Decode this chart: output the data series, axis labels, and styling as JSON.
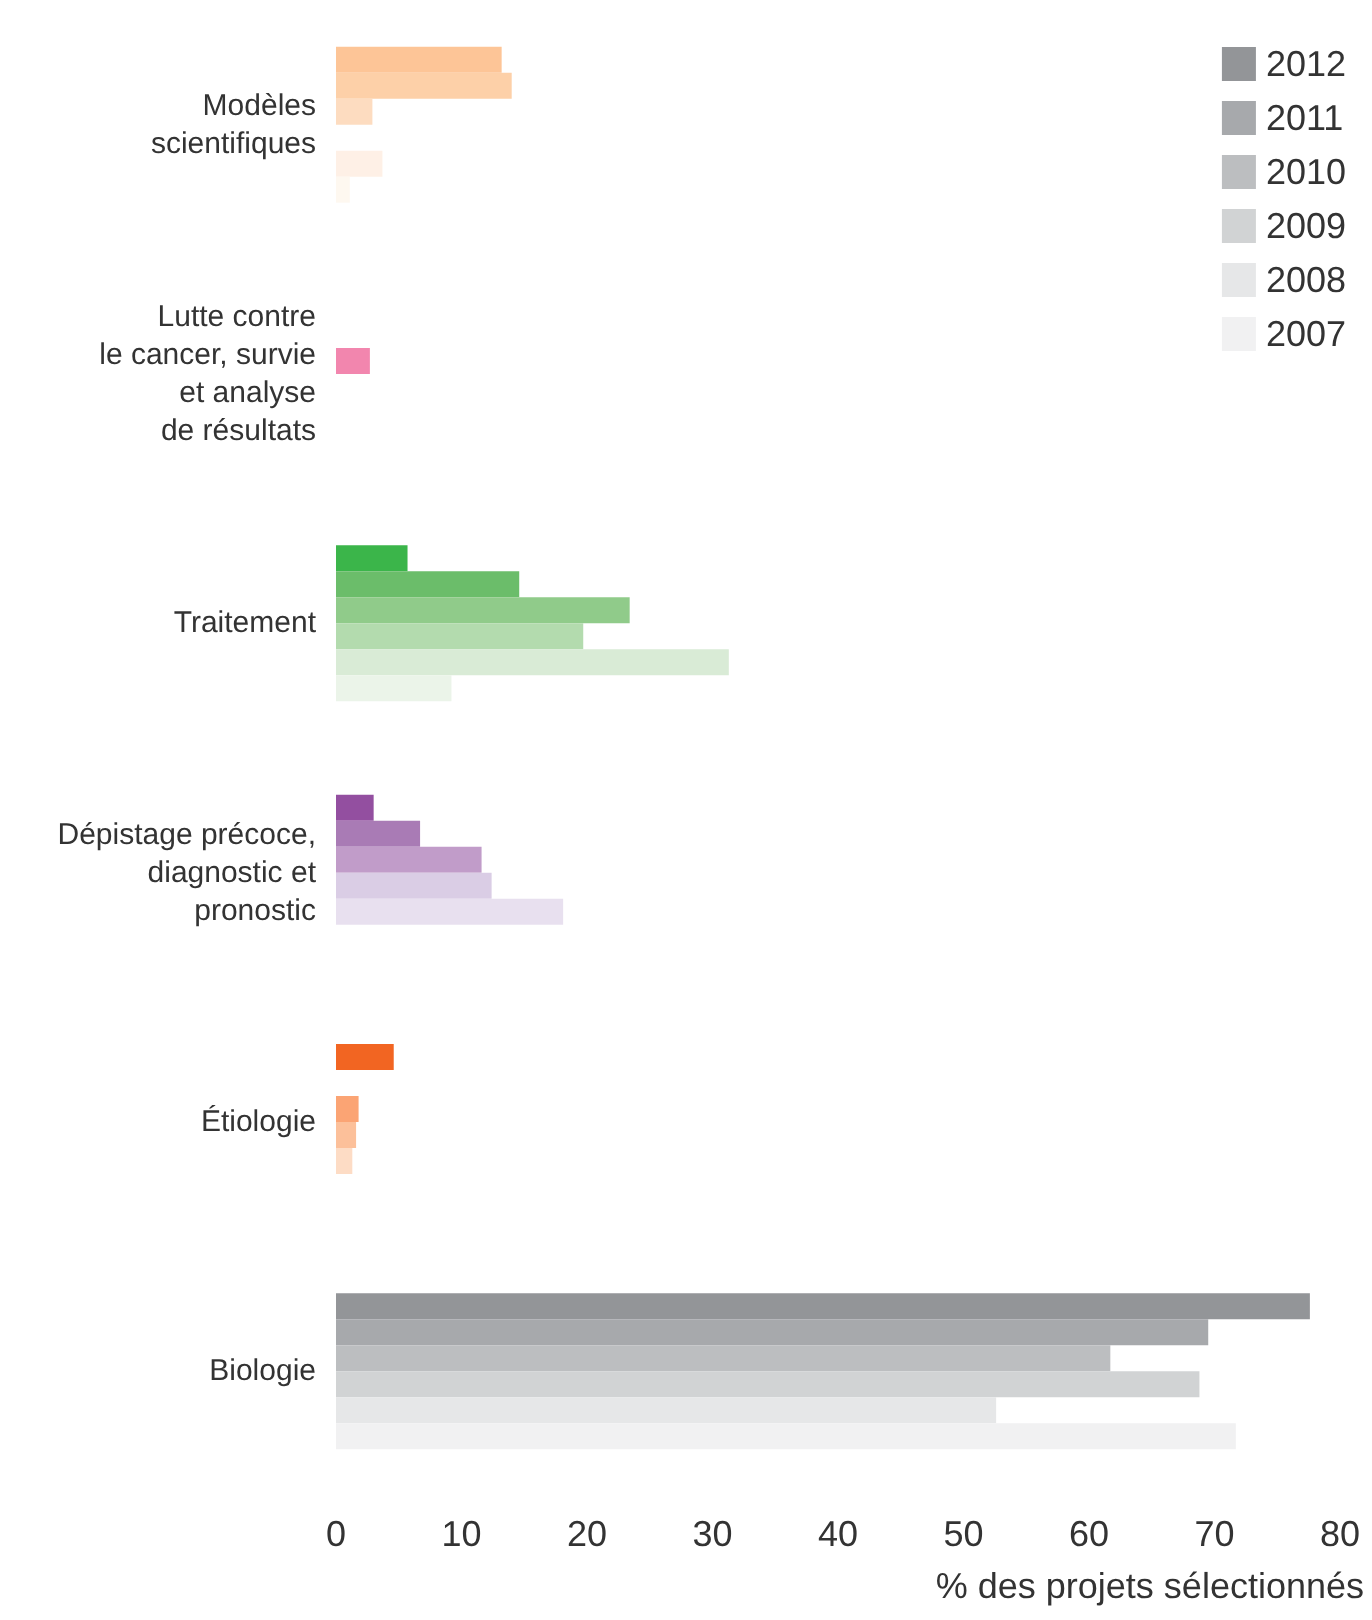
{
  "chart_data": {
    "type": "bar",
    "orientation": "horizontal",
    "xlabel": "% des projets sélectionnés",
    "categories": [
      "Modèles\nscientifiques",
      "Lutte contre\nle cancer, survie\net analyse\nde résultats",
      "Traitement",
      "Dépistage précoce,\ndiagnostic et\npronostic",
      "Étiologie",
      "Biologie"
    ],
    "series": [
      {
        "name": "2012",
        "color": "#939598",
        "values": [
          13.2,
          0,
          5.7,
          3.0,
          4.6,
          77.6
        ],
        "colors": [
          "#fdc597",
          "#f286ae",
          "#3bb54a",
          "#934fa0",
          "#f26522",
          "#939598"
        ]
      },
      {
        "name": "2011",
        "color": "#a7a9ac",
        "values": [
          14.0,
          0,
          14.6,
          6.7,
          0,
          69.5
        ],
        "colors": [
          "#fdd0a8",
          "#f286ae",
          "#6bbd6a",
          "#a97bb5",
          "#f26522",
          "#a7a9ac"
        ]
      },
      {
        "name": "2010",
        "color": "#bcbec0",
        "values": [
          2.9,
          2.7,
          23.4,
          11.6,
          1.8,
          61.7
        ],
        "colors": [
          "#fddcc0",
          "#f286ae",
          "#90cb8a",
          "#c19cc9",
          "#fba474",
          "#bcbec0"
        ]
      },
      {
        "name": "2009",
        "color": "#d1d3d4",
        "values": [
          0,
          0,
          19.7,
          12.4,
          1.6,
          68.8
        ],
        "colors": [
          "#fee6d4",
          "#f286ae",
          "#b3dbae",
          "#dacde5",
          "#fcc09a",
          "#d1d3d4"
        ]
      },
      {
        "name": "2008",
        "color": "#e6e7e8",
        "values": [
          3.7,
          0,
          31.3,
          18.1,
          1.3,
          52.6
        ],
        "colors": [
          "#fef0e6",
          "#f286ae",
          "#d9ebd6",
          "#e8e0ef",
          "#fddcc5",
          "#e6e7e8"
        ]
      },
      {
        "name": "2007",
        "color": "#f1f1f2",
        "values": [
          1.1,
          0,
          9.2,
          0,
          0,
          71.7
        ],
        "colors": [
          "#fef8f0",
          "#f286ae",
          "#ebf4e9",
          "#e8e0ef",
          "#fddcc5",
          "#f1f1f2"
        ]
      }
    ],
    "xlim": [
      0,
      80
    ],
    "xticks": [
      0,
      10,
      20,
      30,
      40,
      50,
      60,
      70,
      80
    ],
    "grid": false,
    "legend": "top right"
  }
}
